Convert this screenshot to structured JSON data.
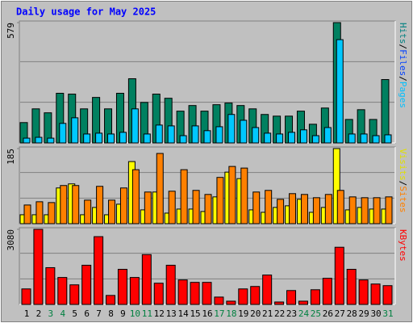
{
  "chart_data": [
    {
      "type": "bar",
      "title": "Daily usage for May 2025",
      "ylim": [
        0,
        579
      ],
      "yticks": [
        579
      ],
      "legend_separator": "/",
      "legend": [
        {
          "name": "Hits",
          "color": "#008080"
        },
        {
          "name": "Files",
          "color": "#0040ff"
        },
        {
          "name": "Pages",
          "color": "#00c0ff"
        }
      ],
      "series": [
        {
          "name": "Hits",
          "color": "#008060",
          "values": [
            98,
            164,
            145,
            239,
            235,
            164,
            219,
            164,
            239,
            309,
            195,
            235,
            215,
            153,
            180,
            153,
            184,
            192,
            180,
            164,
            137,
            129,
            129,
            153,
            90,
            168,
            579,
            113,
            160,
            113,
            305
          ]
        },
        {
          "name": "Files",
          "color": "#00c8ff",
          "values": [
            23,
            27,
            23,
            94,
            121,
            43,
            47,
            43,
            51,
            164,
            43,
            86,
            82,
            35,
            82,
            59,
            78,
            137,
            109,
            74,
            47,
            43,
            51,
            63,
            35,
            74,
            497,
            43,
            43,
            35,
            39
          ]
        }
      ]
    },
    {
      "type": "bar",
      "ylim": [
        0,
        185
      ],
      "yticks": [
        185
      ],
      "legend_separator": "/",
      "legend": [
        {
          "name": "Visits",
          "color": "#e0e000"
        },
        {
          "name": "Sites",
          "color": "#ff8000"
        }
      ],
      "series": [
        {
          "name": "Visits",
          "color": "#ffff00",
          "values": [
            22,
            22,
            22,
            88,
            98,
            22,
            40,
            22,
            48,
            153,
            34,
            78,
            26,
            36,
            36,
            30,
            66,
            127,
            111,
            34,
            28,
            40,
            44,
            60,
            28,
            40,
            185,
            34,
            40,
            36,
            36
          ]
        },
        {
          "name": "Sites",
          "color": "#ff8000",
          "values": [
            46,
            54,
            52,
            94,
            94,
            58,
            92,
            58,
            88,
            133,
            78,
            173,
            80,
            133,
            82,
            72,
            114,
            141,
            137,
            78,
            82,
            60,
            74,
            72,
            64,
            72,
            82,
            66,
            64,
            64,
            66
          ]
        }
      ]
    },
    {
      "type": "bar",
      "ylim": [
        0,
        3080
      ],
      "yticks": [
        3080
      ],
      "legend": [
        {
          "name": "KBytes",
          "color": "#ff0000"
        }
      ],
      "categories": [
        "1",
        "2",
        "3",
        "4",
        "5",
        "6",
        "7",
        "8",
        "9",
        "10",
        "11",
        "12",
        "13",
        "14",
        "15",
        "16",
        "17",
        "18",
        "19",
        "20",
        "21",
        "22",
        "23",
        "24",
        "25",
        "26",
        "27",
        "28",
        "29",
        "30",
        "31"
      ],
      "category_colors": [
        "#000000",
        "#000000",
        "#008040",
        "#008040",
        "#000000",
        "#000000",
        "#000000",
        "#000000",
        "#000000",
        "#008040",
        "#008040",
        "#000000",
        "#000000",
        "#000000",
        "#000000",
        "#000000",
        "#008040",
        "#008040",
        "#000000",
        "#000000",
        "#000000",
        "#000000",
        "#000000",
        "#008040",
        "#008040",
        "#000000",
        "#000000",
        "#000000",
        "#000000",
        "#000000",
        "#008040"
      ],
      "series": [
        {
          "name": "KBytes",
          "color": "#ff0000",
          "values": [
            637,
            3080,
            1508,
            1106,
            804,
            1608,
            2780,
            369,
            1441,
            1106,
            2044,
            871,
            1608,
            1005,
            905,
            905,
            302,
            134,
            637,
            737,
            1206,
            100,
            570,
            134,
            603,
            1072,
            2345,
            1441,
            1005,
            838,
            771
          ]
        }
      ]
    }
  ]
}
